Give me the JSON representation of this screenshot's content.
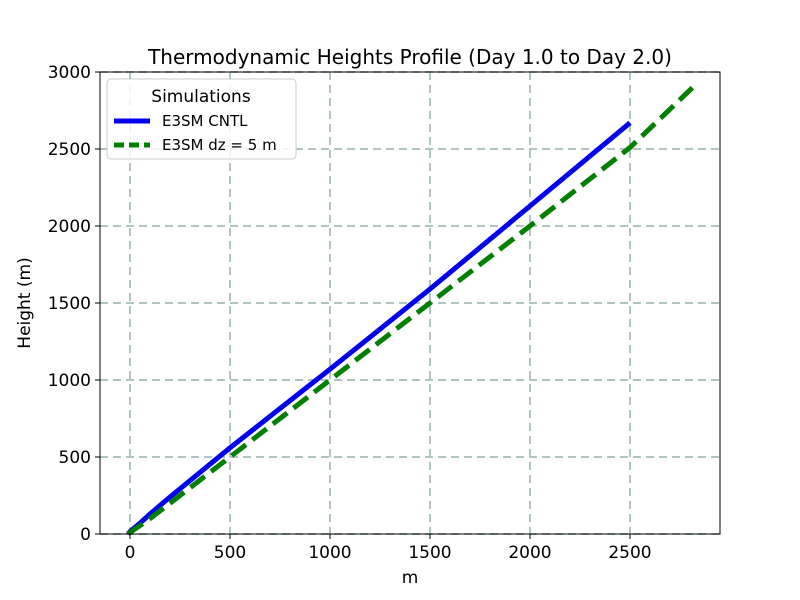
{
  "chart_data": {
    "type": "line",
    "title": "Thermodynamic Heights Profile (Day 1.0 to Day 2.0)",
    "xlabel": "m",
    "ylabel": "Height (m)",
    "xlim": [
      -150,
      2950
    ],
    "ylim": [
      0,
      3000
    ],
    "xticks": [
      0,
      500,
      1000,
      1500,
      2000,
      2500
    ],
    "yticks": [
      0,
      500,
      1000,
      1500,
      2000,
      2500,
      3000
    ],
    "grid": true,
    "legend": {
      "title": "Simulations",
      "placement": "top-left"
    },
    "series": [
      {
        "name": "E3SM CNTL",
        "color": "#0000ee",
        "style": "solid",
        "x": [
          -10,
          0,
          50,
          100,
          200,
          500,
          1000,
          1500,
          2000,
          2500
        ],
        "y": [
          0,
          15,
          70,
          130,
          240,
          560,
          1070,
          1590,
          2130,
          2670
        ]
      },
      {
        "name": "E3SM dz = 5 m",
        "color": "#007f00",
        "style": "dashed",
        "x": [
          -10,
          0,
          100,
          500,
          1000,
          1500,
          2000,
          2500,
          2830
        ],
        "y": [
          0,
          10,
          100,
          500,
          1000,
          1500,
          2000,
          2510,
          2920
        ]
      }
    ]
  }
}
